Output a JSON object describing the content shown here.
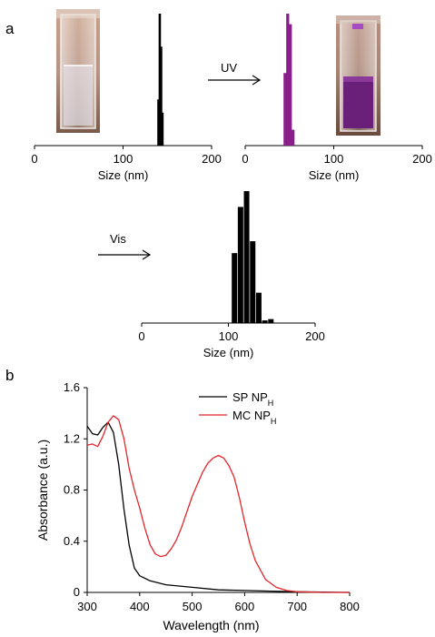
{
  "panels": {
    "a_label": "a",
    "b_label": "b"
  },
  "arrows": {
    "uv": "UV",
    "vis": "Vis"
  },
  "colors": {
    "black": "#000000",
    "purple": "#8a1e8a",
    "red": "#e2262b"
  },
  "photos": {
    "left": {
      "liquid": "clear"
    },
    "right": {
      "liquid": "purple"
    }
  },
  "chart_data": [
    {
      "type": "bar",
      "id": "dls-initial",
      "xlabel": "Size (nm)",
      "xlim": [
        0,
        200
      ],
      "x_ticks": [
        0,
        100,
        200
      ],
      "bar_color": "#000000",
      "x": [
        140,
        141.5,
        143,
        144.5
      ],
      "values": [
        0.35,
        1.0,
        0.75,
        0.25
      ]
    },
    {
      "type": "bar",
      "id": "dls-after-uv",
      "xlabel": "Size (nm)",
      "xlim": [
        0,
        200
      ],
      "x_ticks": [
        0,
        100,
        200
      ],
      "bar_color": "#8a1e8a",
      "x": [
        45,
        48,
        51,
        54
      ],
      "values": [
        0.55,
        1.0,
        0.92,
        0.12
      ]
    },
    {
      "type": "bar",
      "id": "dls-after-vis",
      "xlabel": "Size (nm)",
      "xlim": [
        0,
        200
      ],
      "x_ticks": [
        0,
        100,
        200
      ],
      "bar_color": "#000000",
      "x": [
        107,
        114,
        121,
        128,
        135,
        142,
        149
      ],
      "values": [
        0.53,
        0.88,
        1.0,
        0.62,
        0.23,
        0.02,
        0.03
      ]
    },
    {
      "type": "line",
      "id": "absorbance",
      "xlabel": "Wavelength (nm)",
      "ylabel": "Absorbance (a.u.)",
      "xlim": [
        300,
        800
      ],
      "ylim": [
        0,
        1.6
      ],
      "x_ticks": [
        300,
        400,
        500,
        600,
        700,
        800
      ],
      "y_ticks": [
        "0",
        "0.4",
        "0.8",
        "1.2",
        "1.6"
      ],
      "series": [
        {
          "name": "SP NP",
          "subscript": "H",
          "color": "#000000",
          "points": [
            [
              300,
              1.3
            ],
            [
              310,
              1.24
            ],
            [
              320,
              1.23
            ],
            [
              330,
              1.29
            ],
            [
              340,
              1.33
            ],
            [
              350,
              1.25
            ],
            [
              360,
              1.0
            ],
            [
              370,
              0.65
            ],
            [
              380,
              0.37
            ],
            [
              390,
              0.19
            ],
            [
              400,
              0.13
            ],
            [
              420,
              0.09
            ],
            [
              450,
              0.06
            ],
            [
              500,
              0.04
            ],
            [
              550,
              0.02
            ],
            [
              600,
              0.015
            ],
            [
              650,
              0.01
            ],
            [
              700,
              0.005
            ],
            [
              800,
              0.0
            ]
          ]
        },
        {
          "name": "MC NP",
          "subscript": "H",
          "color": "#e2262b",
          "points": [
            [
              300,
              1.15
            ],
            [
              310,
              1.16
            ],
            [
              320,
              1.14
            ],
            [
              330,
              1.22
            ],
            [
              340,
              1.33
            ],
            [
              350,
              1.38
            ],
            [
              360,
              1.35
            ],
            [
              370,
              1.2
            ],
            [
              380,
              0.97
            ],
            [
              390,
              0.8
            ],
            [
              400,
              0.66
            ],
            [
              410,
              0.5
            ],
            [
              420,
              0.37
            ],
            [
              430,
              0.3
            ],
            [
              440,
              0.28
            ],
            [
              450,
              0.29
            ],
            [
              460,
              0.34
            ],
            [
              470,
              0.41
            ],
            [
              480,
              0.51
            ],
            [
              500,
              0.75
            ],
            [
              520,
              0.94
            ],
            [
              530,
              1.01
            ],
            [
              540,
              1.05
            ],
            [
              550,
              1.07
            ],
            [
              560,
              1.05
            ],
            [
              570,
              0.99
            ],
            [
              580,
              0.9
            ],
            [
              590,
              0.74
            ],
            [
              600,
              0.55
            ],
            [
              610,
              0.38
            ],
            [
              620,
              0.25
            ],
            [
              640,
              0.1
            ],
            [
              660,
              0.04
            ],
            [
              680,
              0.015
            ],
            [
              700,
              0.005
            ],
            [
              750,
              0.0
            ],
            [
              800,
              0.0
            ]
          ]
        }
      ],
      "legend_position": "top-right"
    }
  ]
}
